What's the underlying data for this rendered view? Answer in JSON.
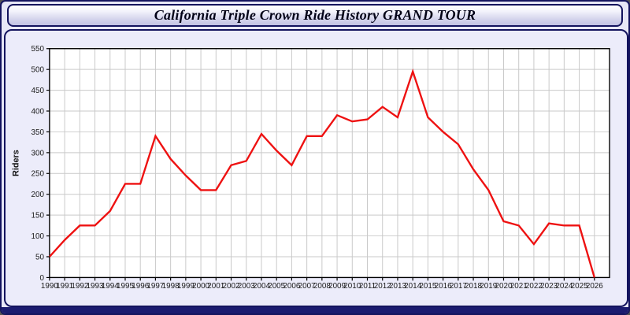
{
  "window": {
    "title": "California Triple Crown Ride History GRAND TOUR"
  },
  "chart_data": {
    "type": "line",
    "title": "California Triple Crown Ride History GRAND TOUR",
    "xlabel": "",
    "ylabel": "Riders",
    "x": [
      1990,
      1991,
      1992,
      1993,
      1994,
      1995,
      1996,
      1997,
      1998,
      1999,
      2000,
      2001,
      2002,
      2003,
      2004,
      2005,
      2006,
      2007,
      2008,
      2009,
      2010,
      2011,
      2012,
      2013,
      2014,
      2015,
      2016,
      2017,
      2018,
      2019,
      2020,
      2021,
      2022,
      2023,
      2024,
      2025,
      2026
    ],
    "series": [
      {
        "name": "Riders",
        "values": [
          50,
          90,
          125,
          125,
          160,
          225,
          225,
          340,
          285,
          245,
          210,
          210,
          270,
          280,
          345,
          305,
          270,
          340,
          340,
          390,
          375,
          380,
          410,
          385,
          495,
          385,
          350,
          320,
          260,
          210,
          135,
          125,
          80,
          130,
          125,
          125,
          0
        ],
        "color": "#ee1111"
      }
    ],
    "ylim": [
      0,
      550
    ],
    "ytick_step": 50,
    "yticks": [
      0,
      50,
      100,
      150,
      200,
      250,
      300,
      350,
      400,
      450,
      500,
      550
    ],
    "grid": true,
    "legend_position": "none",
    "plot_background": "#ffffff",
    "gridline_color": "#c9c9c9"
  },
  "colors": {
    "window_border": "#14145e",
    "panel_background": "#ececfa",
    "bottom_bar": "#1b1b6f",
    "axis_text": "#1a1a1a",
    "line_color": "#ee1111"
  }
}
